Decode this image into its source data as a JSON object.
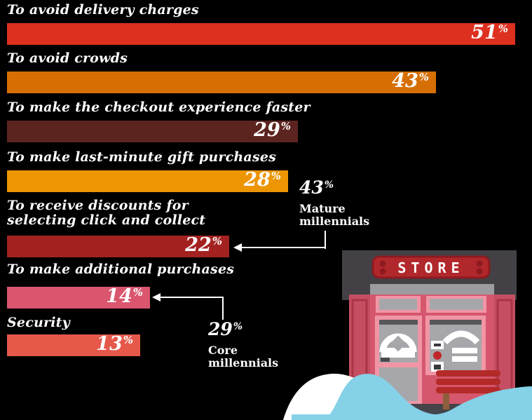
{
  "chart_data": {
    "type": "bar",
    "orientation": "horizontal",
    "percent_symbol": "%",
    "max_value": 51,
    "categories": [
      "To avoid delivery charges",
      "To avoid crowds",
      "To make the checkout experience faster",
      "To make last-minute gift purchases",
      "To receive discounts for selecting click and collect",
      "To make additional purchases",
      "Security"
    ],
    "values": [
      51,
      43,
      29,
      28,
      22,
      14,
      13
    ],
    "rows": [
      {
        "label": "To avoid delivery charges",
        "value": 51,
        "color": "#dd301f"
      },
      {
        "label": "To avoid crowds",
        "value": 43,
        "color": "#d66f03"
      },
      {
        "label": "To make the checkout experience faster",
        "value": 29,
        "color": "#5c241f"
      },
      {
        "label": "To make last-minute gift purchases",
        "value": 28,
        "color": "#ed9503"
      },
      {
        "label": "To receive discounts for\nselecting click and collect",
        "value": 22,
        "color": "#a32220"
      },
      {
        "label": "To make additional purchases",
        "value": 14,
        "color": "#d9566e"
      },
      {
        "label": "Security",
        "value": 13,
        "color": "#e6584a"
      }
    ],
    "annotations": [
      {
        "value": 43,
        "text": "Mature\nmillennials",
        "points_to": "To receive discounts for selecting click and collect"
      },
      {
        "value": 29,
        "text": "Core\nmillennials",
        "points_to": "To make additional purchases"
      }
    ],
    "legend": "off",
    "grid": "off",
    "background": "#000000",
    "text_color": "#ffffff"
  },
  "illustration": {
    "store_sign_label": "STORE",
    "colors": {
      "roof": "#434146",
      "eave": "#9c9ca0",
      "sign_red": "#b1282c",
      "sign_dark_red": "#8d1a1f",
      "facade_pink": "#d5576d",
      "pillar_rose": "#c54e63",
      "frame_light_pink": "#f195a5",
      "glass_gray": "#a7a7ab",
      "bench_red": "#b32a28",
      "leg_brown": "#8f5f3d",
      "wave_blue": "#84d1e8",
      "snow_white": "#ffffff"
    }
  }
}
